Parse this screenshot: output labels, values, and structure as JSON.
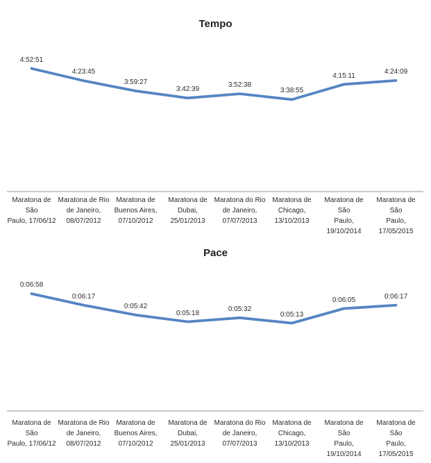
{
  "page": {
    "background_color": "#FFFFFF"
  },
  "chart_data": [
    {
      "type": "line",
      "title": "Tempo",
      "categories": [
        "Maratona de São\nPaulo, 17/06/12",
        "Maratona de Rio\nde Janeiro,\n08/07/2012",
        "Maratona de\nBuenos Aires,\n07/10/2012",
        "Maratona de\nDubai,\n25/01/2013",
        "Maratona do Rio\nde Janeiro,\n07/07/2013",
        "Maratona de\nChicago,\n13/10/2013",
        "Maratona de São\nPaulo,\n19/10/2014",
        "Maratona de São\nPaulo,\n17/05/2015"
      ],
      "series": [
        {
          "name": "Tempo",
          "values": [
            "4:52:51",
            "4:23:45",
            "3:59:27",
            "3:42:39",
            "3:52:38",
            "3:38:55",
            "4:15:11",
            "4:24:09"
          ]
        }
      ],
      "data_labels_shown": true,
      "xlabel": "",
      "ylabel": "",
      "ylim": [
        "0:00:00",
        "6:00:00"
      ],
      "grid": false,
      "legend": false,
      "line_color": "#5585C3",
      "axis_color": "#C9C9C9",
      "text_color": "#2B2B2B"
    },
    {
      "type": "line",
      "title": "Pace",
      "categories": [
        "Maratona de São\nPaulo, 17/06/12",
        "Maratona de Rio\nde Janeiro,\n08/07/2012",
        "Maratona de\nBuenos Aires,\n07/10/2012",
        "Maratona de\nDubai,\n25/01/2013",
        "Maratona do Rio\nde Janeiro,\n07/07/2013",
        "Maratona de\nChicago,\n13/10/2013",
        "Maratona de São\nPaulo,\n19/10/2014",
        "Maratona de São\nPaulo,\n17/05/2015"
      ],
      "series": [
        {
          "name": "Pace",
          "values": [
            "0:06:58",
            "0:06:17",
            "0:05:42",
            "0:05:18",
            "0:05:32",
            "0:05:13",
            "0:06:05",
            "0:06:17"
          ]
        }
      ],
      "data_labels_shown": true,
      "xlabel": "",
      "ylabel": "",
      "ylim": [
        "0:00:00",
        "0:08:00"
      ],
      "grid": false,
      "legend": false,
      "line_color": "#5585C3",
      "axis_color": "#C9C9C9",
      "text_color": "#2B2B2B"
    }
  ]
}
